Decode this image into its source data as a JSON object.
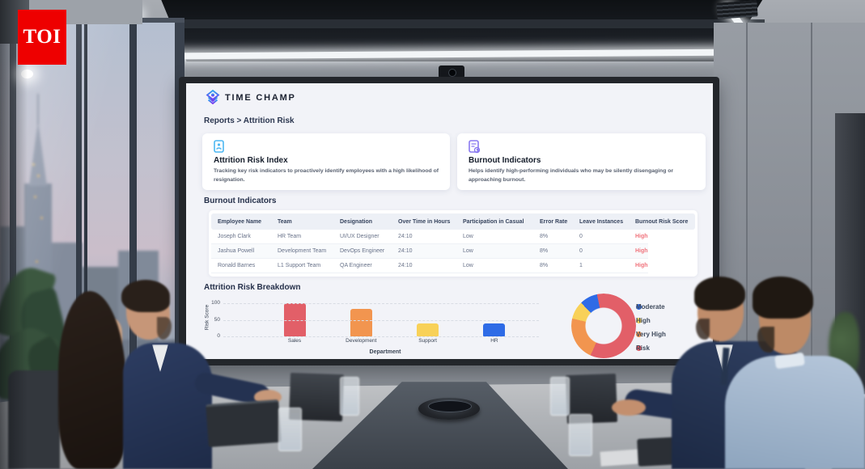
{
  "watermark": {
    "text": "TOI"
  },
  "dashboard": {
    "brand": "TIME CHAMP",
    "breadcrumb": "Reports > Attrition Risk",
    "cards": [
      {
        "icon": "attrition-document-icon",
        "icon_color": "#4db7f2",
        "title": "Attrition Risk Index",
        "description": "Tracking key risk indicators to proactively identify employees with a high likelihood of resignation."
      },
      {
        "icon": "burnout-report-icon",
        "icon_color": "#8a7af0",
        "title": "Burnout Indicators",
        "description": "Helps identify high-performing individuals who may be silently disengaging or approaching burnout."
      }
    ],
    "table_section_title": "Burnout Indicators",
    "table": {
      "columns": [
        "Employee Name",
        "Team",
        "Designation",
        "Over Time in Hours",
        "Participation in Casual",
        "Error Rate",
        "Leave Instances",
        "Burnout Risk Score"
      ],
      "rows": [
        [
          "Joseph Clark",
          "HR Team",
          "UI/UX Designer",
          "24:10",
          "Low",
          "8%",
          "0",
          "High"
        ],
        [
          "Jashua Powell",
          "Development Team",
          "DevOps Engineer",
          "24:10",
          "Low",
          "8%",
          "0",
          "High"
        ],
        [
          "Ronald Barnes",
          "L1 Support Team",
          "QA Engineer",
          "24:10",
          "Low",
          "8%",
          "1",
          "High"
        ]
      ],
      "risk_value_color": "#f0737c"
    },
    "chart_section_title": "Attrition Risk Breakdown"
  },
  "chart_data": [
    {
      "type": "bar",
      "title": "Attrition Risk Breakdown",
      "categories": [
        "Sales",
        "Development",
        "Support",
        "HR"
      ],
      "values": [
        100,
        82,
        40,
        40
      ],
      "colors": [
        "#e25f68",
        "#f2954f",
        "#f8d158",
        "#2e6be6"
      ],
      "xlabel": "Department",
      "ylabel": "Risk Score",
      "ylim": [
        0,
        100
      ],
      "yticks": [
        100,
        50,
        0
      ],
      "grid": "dashed-horizontal"
    },
    {
      "type": "pie",
      "subtype": "donut",
      "legend_position": "right",
      "segments": [
        {
          "label": "Moderate",
          "color": "#2e6be6",
          "percent": 9
        },
        {
          "label": "High",
          "color": "#f8d158",
          "percent": 9
        },
        {
          "label": "Very High",
          "color": "#f2954f",
          "percent": 22
        },
        {
          "label": "Risk",
          "color": "#e25f68",
          "percent": 60
        }
      ]
    }
  ]
}
